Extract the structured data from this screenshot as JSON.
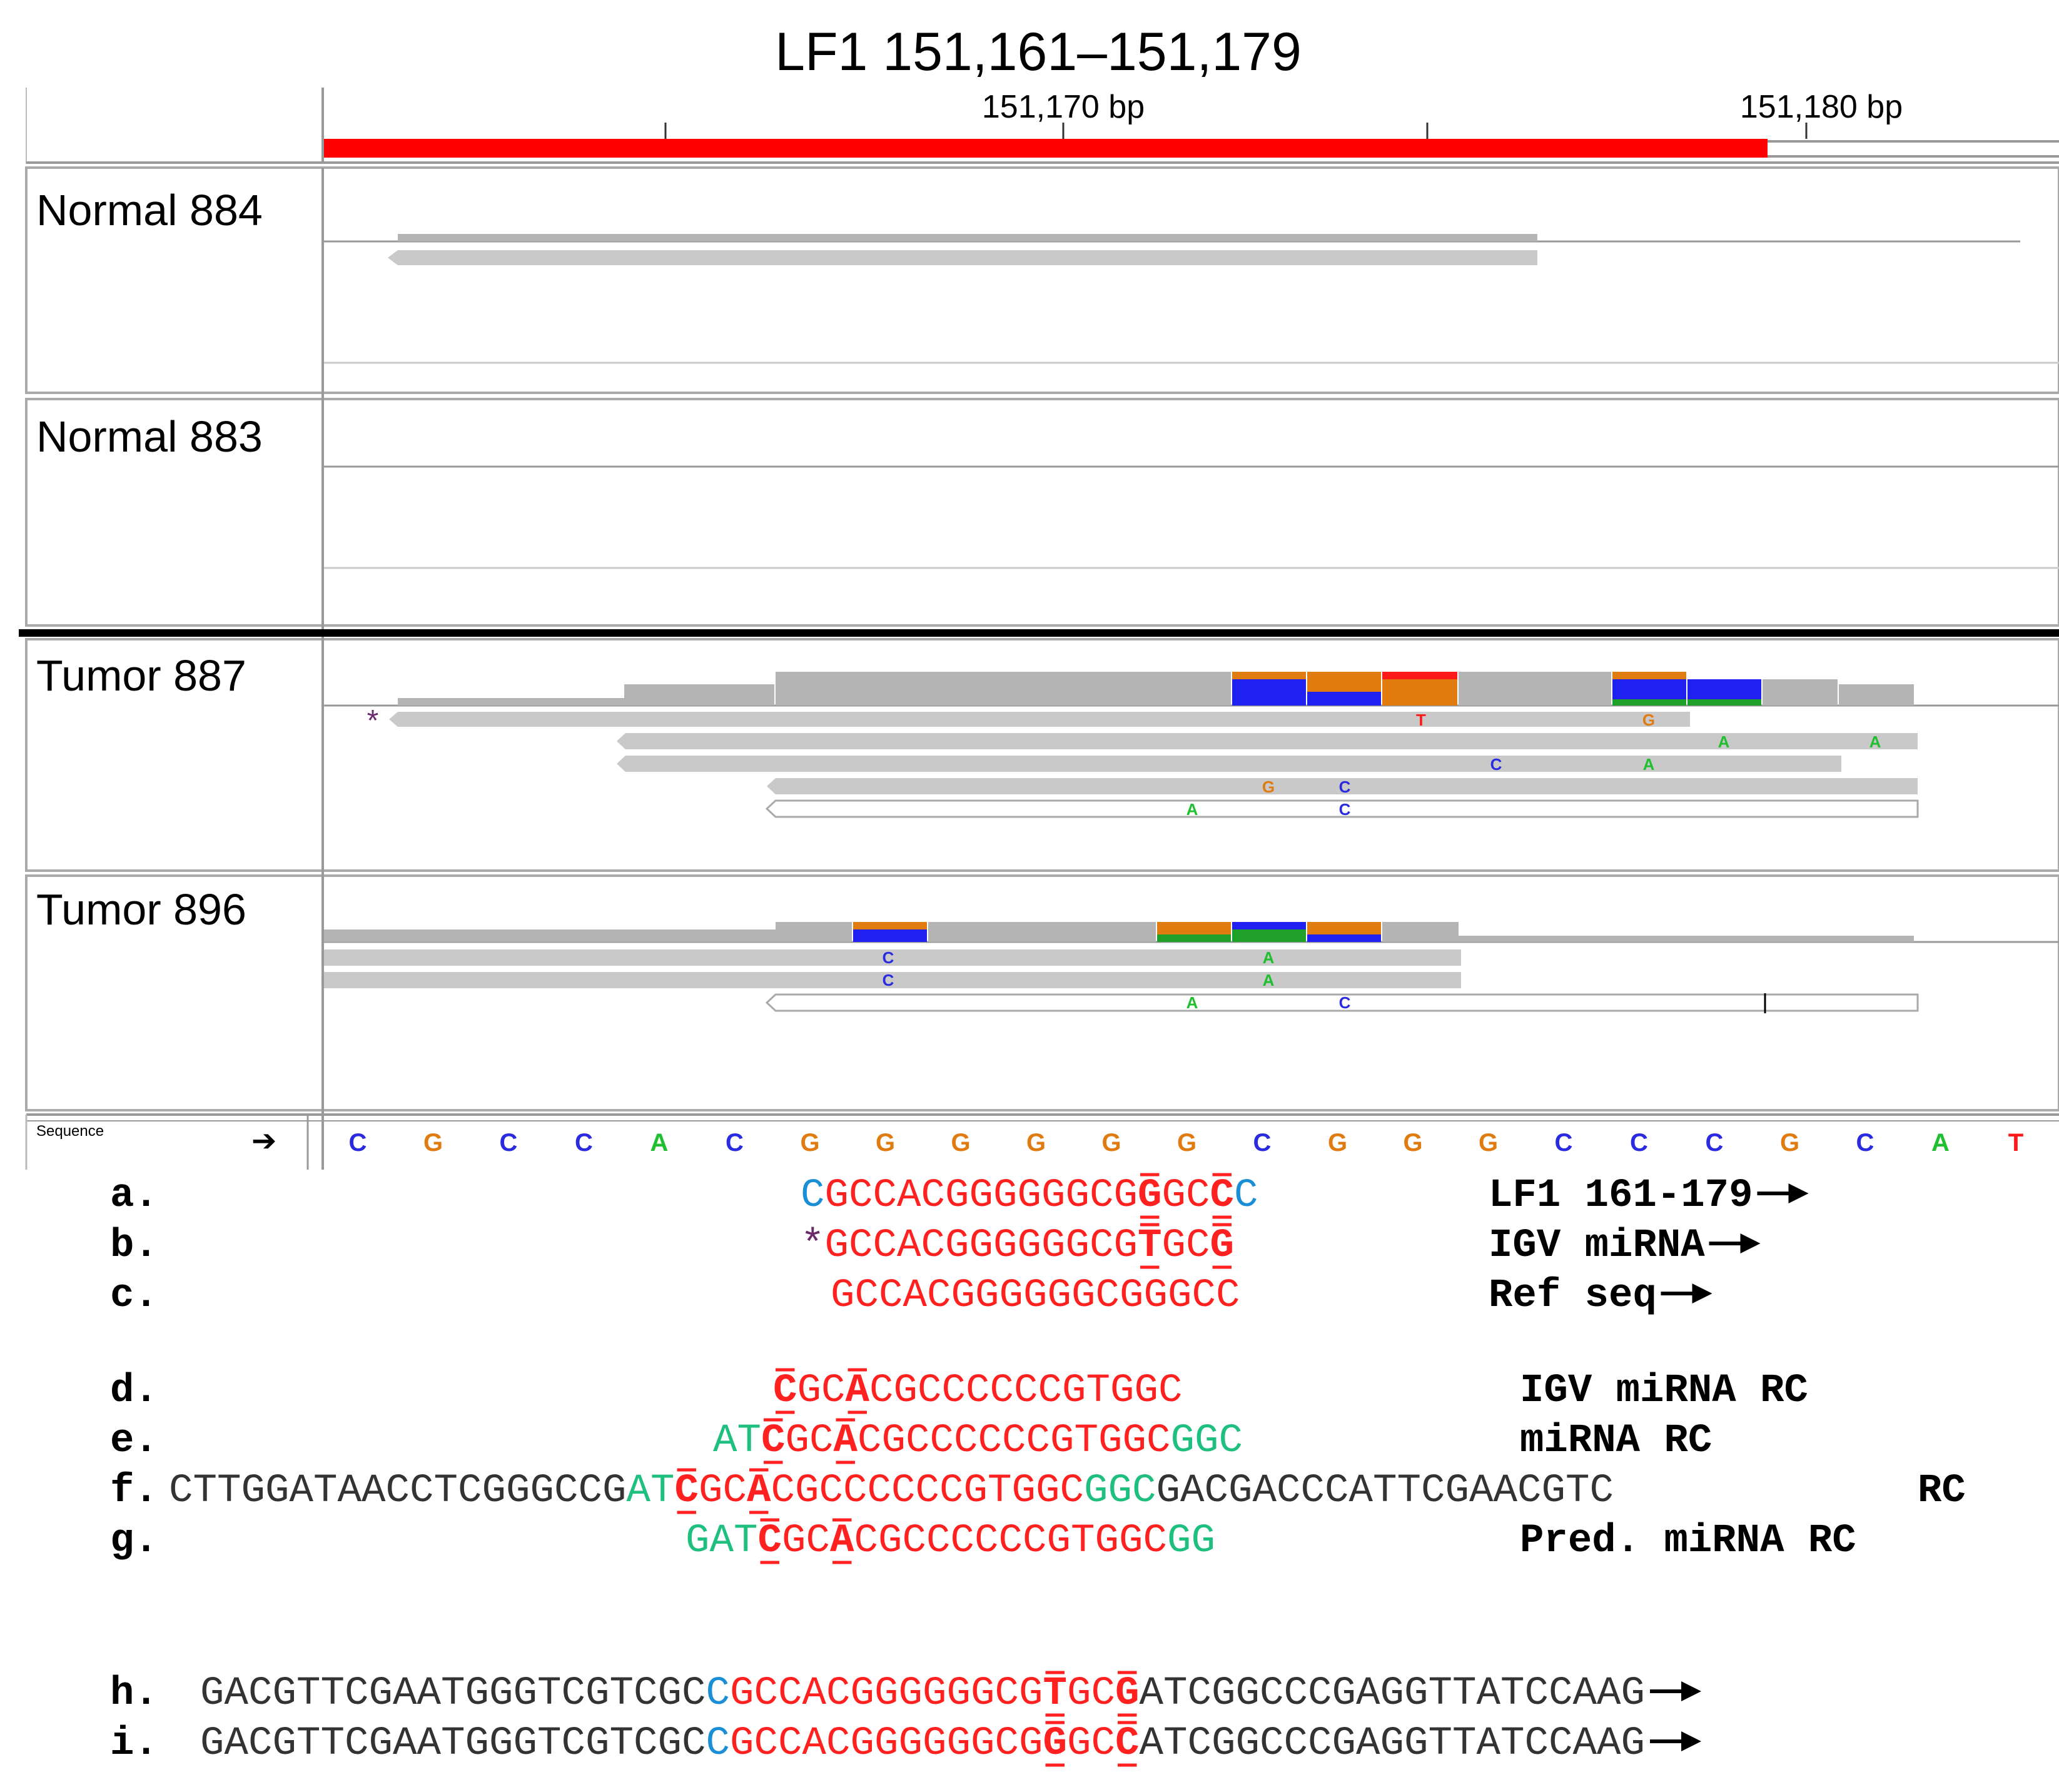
{
  "title": "LF1 151,161–151,179",
  "ruler": {
    "label_left": "151,170 bp",
    "label_right": "151,180 bp"
  },
  "tracks": [
    {
      "name": "Normal 884"
    },
    {
      "name": "Normal 883"
    },
    {
      "name": "Tumor 887"
    },
    {
      "name": "Tumor 896"
    }
  ],
  "sequence_track": {
    "label": "Sequence",
    "arrow": "➔",
    "bases": [
      "C",
      "G",
      "C",
      "C",
      "A",
      "C",
      "G",
      "G",
      "G",
      "G",
      "G",
      "G",
      "C",
      "G",
      "G",
      "G",
      "C",
      "C",
      "C",
      "G",
      "C",
      "A",
      "T"
    ]
  },
  "annotation_star": "*",
  "tumor887_mismatches": [
    "T",
    "G",
    "A",
    "A",
    "C",
    "A",
    "G",
    "C",
    "A",
    "C"
  ],
  "tumor896_mismatches": [
    "C",
    "A",
    "C",
    "A",
    "A",
    "C"
  ],
  "colors": {
    "A": "#1fbf2f",
    "C": "#2a2ae0",
    "G": "#e07b10",
    "T": "#ff1a1a",
    "red_seq": "#ff2020",
    "blue_seq": "#1a8fd6",
    "green_seq": "#1fbf7f",
    "read": "#c9c9c9",
    "coverage": "#b4b4b4",
    "locus_bar": "#ff0000"
  },
  "alignment_rows": [
    {
      "id": "a.",
      "parts": [
        {
          "t": "C",
          "c": "blue_seq"
        },
        {
          "t": "GCCACGGGGGGCG",
          "c": "red_seq"
        },
        {
          "t": "G",
          "c": "red_seq",
          "b": true,
          "u": true
        },
        {
          "t": "GC",
          "c": "red_seq"
        },
        {
          "t": "C",
          "c": "red_seq",
          "b": true,
          "u": true
        },
        {
          "t": "C",
          "c": "blue_seq"
        }
      ],
      "label": "LF1 161-179"
    },
    {
      "id": "b.",
      "parts": [
        {
          "t": "*",
          "c": "star"
        },
        {
          "t": "GCCACGGGGGGCG",
          "c": "red_seq"
        },
        {
          "t": "T",
          "c": "red_seq",
          "b": true,
          "u": true
        },
        {
          "t": "GC",
          "c": "red_seq"
        },
        {
          "t": "G",
          "c": "red_seq",
          "b": true,
          "u": true
        }
      ],
      "label": "IGV miRNA"
    },
    {
      "id": "c.",
      "parts": [
        {
          "t": "GCCACGGGGGGCGGGCC",
          "c": "red_seq"
        }
      ],
      "label": "Ref seq"
    },
    {
      "id": "d.",
      "parts": [
        {
          "t": "C",
          "c": "red_seq",
          "b": true,
          "u": true
        },
        {
          "t": "GC",
          "c": "red_seq"
        },
        {
          "t": "A",
          "c": "red_seq",
          "b": true,
          "u": true
        },
        {
          "t": "CGCCCCCCGTGGC",
          "c": "red_seq"
        }
      ],
      "label": "IGV miRNA RC"
    },
    {
      "id": "e.",
      "parts": [
        {
          "t": "AT",
          "c": "green_seq"
        },
        {
          "t": "C",
          "c": "red_seq",
          "b": true,
          "u": true
        },
        {
          "t": "GC",
          "c": "red_seq"
        },
        {
          "t": "A",
          "c": "red_seq",
          "b": true,
          "u": true
        },
        {
          "t": "CGCCCCCCGTGGC",
          "c": "red_seq"
        },
        {
          "t": "GGC",
          "c": "green_seq"
        }
      ],
      "label": "miRNA RC"
    },
    {
      "id": "f.",
      "parts": [
        {
          "t": "CTTGGATAACCTCGGGCCG",
          "c": "black"
        },
        {
          "t": "AT",
          "c": "green_seq"
        },
        {
          "t": "C",
          "c": "red_seq",
          "b": true,
          "u": true
        },
        {
          "t": "GC",
          "c": "red_seq"
        },
        {
          "t": "A",
          "c": "red_seq",
          "b": true,
          "u": true
        },
        {
          "t": "CGCCCCCCGTGGC",
          "c": "red_seq"
        },
        {
          "t": "GGC",
          "c": "green_seq"
        },
        {
          "t": "GACGACCCATTCGAACGTC",
          "c": "black"
        }
      ],
      "label": "RC"
    },
    {
      "id": "g.",
      "parts": [
        {
          "t": "GAT",
          "c": "green_seq"
        },
        {
          "t": "C",
          "c": "red_seq",
          "b": true,
          "u": true
        },
        {
          "t": "GC",
          "c": "red_seq"
        },
        {
          "t": "A",
          "c": "red_seq",
          "b": true,
          "u": true
        },
        {
          "t": "CGCCCCCCGTGGC",
          "c": "red_seq"
        },
        {
          "t": "GG",
          "c": "green_seq"
        }
      ],
      "label": "Pred. miRNA  RC"
    },
    {
      "id": "h.",
      "parts": [
        {
          "t": "GACGTTCGAATGGGTCGTCGC",
          "c": "black"
        },
        {
          "t": "C",
          "c": "blue_seq"
        },
        {
          "t": "GCCACGGGGGGCG",
          "c": "red_seq"
        },
        {
          "t": "T",
          "c": "red_seq",
          "b": true,
          "u": true
        },
        {
          "t": "GC",
          "c": "red_seq"
        },
        {
          "t": "G",
          "c": "red_seq",
          "b": true,
          "u": true
        },
        {
          "t": "ATCGGCCCGAGGTTATCCAAG",
          "c": "black"
        }
      ],
      "label": ""
    },
    {
      "id": "i.",
      "parts": [
        {
          "t": "GACGTTCGAATGGGTCGTCGC",
          "c": "black"
        },
        {
          "t": "C",
          "c": "blue_seq"
        },
        {
          "t": "GCCACGGGGGGCG",
          "c": "red_seq"
        },
        {
          "t": "G",
          "c": "red_seq",
          "b": true,
          "u": true
        },
        {
          "t": "GC",
          "c": "red_seq"
        },
        {
          "t": "C",
          "c": "red_seq",
          "b": true,
          "u": true
        },
        {
          "t": "ATCGGCCCGAGGTTATCCAAG",
          "c": "black"
        }
      ],
      "label": ""
    }
  ]
}
